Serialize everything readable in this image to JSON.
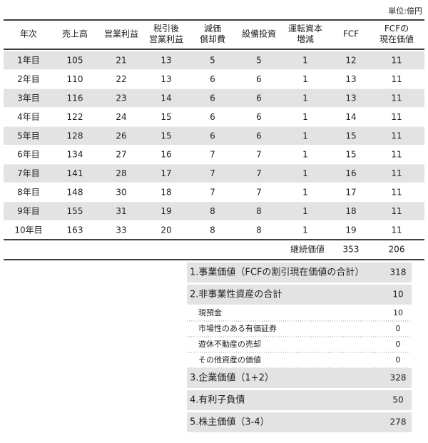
{
  "unit": "単位:億円",
  "table": {
    "header": [
      [
        "年次"
      ],
      [
        "売上高"
      ],
      [
        "営業利益"
      ],
      [
        "税引後",
        "営業利益"
      ],
      [
        "減価",
        "償却費"
      ],
      [
        "設備投資"
      ],
      [
        "運転資本",
        "増減"
      ],
      [
        "FCF"
      ],
      [
        "FCFの",
        "現在価値"
      ]
    ],
    "rows": [
      [
        "1年目",
        105,
        21,
        13,
        5,
        5,
        1,
        12,
        11
      ],
      [
        "2年目",
        110,
        22,
        13,
        6,
        6,
        1,
        13,
        11
      ],
      [
        "3年目",
        116,
        23,
        14,
        6,
        6,
        1,
        13,
        11
      ],
      [
        "4年目",
        122,
        24,
        15,
        6,
        6,
        1,
        14,
        11
      ],
      [
        "5年目",
        128,
        26,
        15,
        6,
        6,
        1,
        15,
        11
      ],
      [
        "6年目",
        134,
        27,
        16,
        7,
        7,
        1,
        15,
        11
      ],
      [
        "7年目",
        141,
        28,
        17,
        7,
        7,
        1,
        16,
        11
      ],
      [
        "8年目",
        148,
        30,
        18,
        7,
        7,
        1,
        17,
        11
      ],
      [
        "9年目",
        155,
        31,
        19,
        8,
        8,
        1,
        18,
        11
      ],
      [
        "10年目",
        163,
        33,
        20,
        8,
        8,
        1,
        19,
        11
      ]
    ]
  },
  "terminal": {
    "label": "継続価値",
    "fcf": 353,
    "present_value": 206
  },
  "summary": [
    {
      "label": "1.事業価値（FCFの割引現在価値の合計）",
      "value": 318
    },
    {
      "label": "2.非事業性資産の合計",
      "value": 10,
      "items": [
        {
          "label": "現預金",
          "value": 10
        },
        {
          "label": "市場性のある有価証券",
          "value": 0
        },
        {
          "label": "遊休不動産の売却",
          "value": 0
        },
        {
          "label": "その他資産の価値",
          "value": 0
        }
      ]
    },
    {
      "label": "3.企業価値（1+2）",
      "value": 328
    },
    {
      "label": "4.有利子負債",
      "value": 50
    },
    {
      "label": "5.株主価値（3-4）",
      "value": 278
    }
  ]
}
